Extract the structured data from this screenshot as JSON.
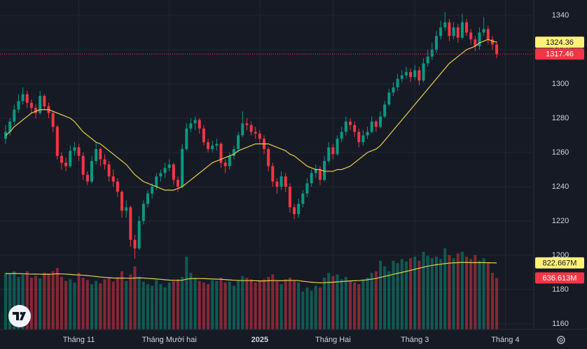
{
  "chart_data": {
    "type": "candlestick",
    "up_color": "#089981",
    "down_color": "#f23645",
    "ma_color": "#e6cf4a",
    "grid": true,
    "ylim": [
      1156.7,
      1349
    ],
    "yticks": [
      1160,
      1180,
      1200,
      1220,
      1240,
      1260,
      1280,
      1300,
      1320,
      1340
    ],
    "volume_ylim": [
      0,
      4074
    ],
    "categories": [
      null,
      null,
      null,
      null,
      null,
      null,
      null,
      null,
      null,
      null,
      null,
      null,
      null,
      null,
      null,
      null,
      null,
      "Tháng 11",
      null,
      null,
      null,
      null,
      null,
      null,
      null,
      null,
      null,
      null,
      null,
      null,
      null,
      null,
      null,
      null,
      null,
      null,
      null,
      null,
      "Tháng Mười hai",
      null,
      null,
      null,
      null,
      null,
      null,
      null,
      null,
      null,
      null,
      null,
      null,
      null,
      null,
      null,
      null,
      null,
      null,
      null,
      null,
      "2025",
      null,
      null,
      null,
      null,
      null,
      null,
      null,
      null,
      null,
      null,
      null,
      null,
      null,
      null,
      null,
      null,
      "Tháng Hai",
      null,
      null,
      null,
      null,
      null,
      null,
      null,
      null,
      null,
      null,
      null,
      null,
      null,
      null,
      null,
      null,
      null,
      null,
      "Tháng 3",
      null,
      null,
      null,
      null,
      null,
      null,
      null,
      null,
      null,
      null,
      null,
      null,
      null,
      null,
      null,
      null,
      null,
      null,
      null,
      null,
      "Tháng 4"
    ],
    "ohlc": [
      [
        1268,
        1276,
        1265,
        1272
      ],
      [
        1272,
        1280,
        1270,
        1278
      ],
      [
        1278,
        1288,
        1276,
        1285
      ],
      [
        1285,
        1294,
        1283,
        1290
      ],
      [
        1290,
        1298,
        1288,
        1294
      ],
      [
        1294,
        1296,
        1286,
        1289
      ],
      [
        1289,
        1291,
        1283,
        1286
      ],
      [
        1286,
        1288,
        1280,
        1283
      ],
      [
        1283,
        1296,
        1282,
        1293
      ],
      [
        1293,
        1294,
        1285,
        1287
      ],
      [
        1287,
        1289,
        1280,
        1283
      ],
      [
        1283,
        1284,
        1272,
        1275
      ],
      [
        1275,
        1276,
        1256,
        1258
      ],
      [
        1258,
        1260,
        1250,
        1254
      ],
      [
        1254,
        1257,
        1249,
        1252
      ],
      [
        1252,
        1264,
        1251,
        1261
      ],
      [
        1261,
        1266,
        1258,
        1263
      ],
      [
        1263,
        1265,
        1255,
        1258
      ],
      [
        1258,
        1260,
        1244,
        1247
      ],
      [
        1247,
        1249,
        1241,
        1243
      ],
      [
        1243,
        1258,
        1242,
        1255
      ],
      [
        1255,
        1266,
        1253,
        1262
      ],
      [
        1262,
        1263,
        1252,
        1256
      ],
      [
        1256,
        1259,
        1250,
        1253
      ],
      [
        1253,
        1255,
        1243,
        1246
      ],
      [
        1246,
        1250,
        1240,
        1243
      ],
      [
        1243,
        1245,
        1234,
        1237
      ],
      [
        1237,
        1238,
        1222,
        1226
      ],
      [
        1226,
        1232,
        1222,
        1228
      ],
      [
        1228,
        1229,
        1205,
        1209
      ],
      [
        1209,
        1212,
        1198,
        1204
      ],
      [
        1204,
        1223,
        1203,
        1220
      ],
      [
        1220,
        1232,
        1218,
        1230
      ],
      [
        1230,
        1238,
        1228,
        1236
      ],
      [
        1236,
        1242,
        1233,
        1240
      ],
      [
        1240,
        1248,
        1238,
        1246
      ],
      [
        1246,
        1250,
        1243,
        1248
      ],
      [
        1248,
        1254,
        1245,
        1251
      ],
      [
        1251,
        1256,
        1249,
        1253
      ],
      [
        1253,
        1254,
        1241,
        1244
      ],
      [
        1244,
        1246,
        1237,
        1240
      ],
      [
        1240,
        1265,
        1239,
        1262
      ],
      [
        1262,
        1277,
        1261,
        1274
      ],
      [
        1274,
        1280,
        1272,
        1277
      ],
      [
        1277,
        1281,
        1273,
        1279
      ],
      [
        1279,
        1280,
        1271,
        1274
      ],
      [
        1274,
        1276,
        1264,
        1266
      ],
      [
        1266,
        1268,
        1260,
        1262
      ],
      [
        1262,
        1267,
        1260,
        1264
      ],
      [
        1264,
        1268,
        1261,
        1265
      ],
      [
        1265,
        1266,
        1251,
        1254
      ],
      [
        1254,
        1256,
        1248,
        1252
      ],
      [
        1252,
        1260,
        1250,
        1258
      ],
      [
        1258,
        1264,
        1256,
        1262
      ],
      [
        1262,
        1272,
        1260,
        1270
      ],
      [
        1270,
        1284,
        1269,
        1277
      ],
      [
        1277,
        1280,
        1273,
        1276
      ],
      [
        1276,
        1278,
        1270,
        1272
      ],
      [
        1272,
        1275,
        1268,
        1271
      ],
      [
        1271,
        1273,
        1265,
        1268
      ],
      [
        1268,
        1270,
        1259,
        1262
      ],
      [
        1262,
        1263,
        1249,
        1252
      ],
      [
        1252,
        1254,
        1240,
        1243
      ],
      [
        1243,
        1245,
        1236,
        1240
      ],
      [
        1240,
        1249,
        1238,
        1246
      ],
      [
        1246,
        1248,
        1237,
        1240
      ],
      [
        1240,
        1242,
        1225,
        1228
      ],
      [
        1228,
        1230,
        1221,
        1224
      ],
      [
        1224,
        1233,
        1222,
        1230
      ],
      [
        1230,
        1238,
        1228,
        1236
      ],
      [
        1236,
        1245,
        1234,
        1242
      ],
      [
        1242,
        1250,
        1240,
        1248
      ],
      [
        1248,
        1253,
        1245,
        1250
      ],
      [
        1250,
        1252,
        1241,
        1244
      ],
      [
        1244,
        1258,
        1243,
        1255
      ],
      [
        1255,
        1266,
        1254,
        1263
      ],
      [
        1263,
        1265,
        1256,
        1259
      ],
      [
        1259,
        1270,
        1258,
        1268
      ],
      [
        1268,
        1275,
        1266,
        1272
      ],
      [
        1272,
        1281,
        1270,
        1278
      ],
      [
        1278,
        1280,
        1273,
        1276
      ],
      [
        1276,
        1278,
        1269,
        1272
      ],
      [
        1272,
        1274,
        1263,
        1266
      ],
      [
        1266,
        1273,
        1264,
        1270
      ],
      [
        1270,
        1275,
        1268,
        1272
      ],
      [
        1272,
        1281,
        1271,
        1278
      ],
      [
        1278,
        1279,
        1272,
        1275
      ],
      [
        1275,
        1284,
        1274,
        1281
      ],
      [
        1281,
        1290,
        1280,
        1288
      ],
      [
        1288,
        1297,
        1287,
        1295
      ],
      [
        1295,
        1301,
        1293,
        1298
      ],
      [
        1298,
        1306,
        1296,
        1303
      ],
      [
        1303,
        1308,
        1301,
        1305
      ],
      [
        1305,
        1310,
        1303,
        1307
      ],
      [
        1307,
        1309,
        1301,
        1304
      ],
      [
        1304,
        1311,
        1302,
        1308
      ],
      [
        1308,
        1310,
        1299,
        1302
      ],
      [
        1302,
        1315,
        1301,
        1312
      ],
      [
        1312,
        1320,
        1310,
        1316
      ],
      [
        1316,
        1324,
        1314,
        1320
      ],
      [
        1320,
        1331,
        1318,
        1328
      ],
      [
        1328,
        1337,
        1326,
        1333
      ],
      [
        1333,
        1342,
        1331,
        1336
      ],
      [
        1336,
        1338,
        1325,
        1328
      ],
      [
        1328,
        1336,
        1326,
        1333
      ],
      [
        1333,
        1335,
        1324,
        1327
      ],
      [
        1327,
        1341,
        1326,
        1336
      ],
      [
        1336,
        1338,
        1328,
        1330
      ],
      [
        1330,
        1332,
        1323,
        1326
      ],
      [
        1326,
        1328,
        1319,
        1322
      ],
      [
        1322,
        1333,
        1320,
        1330
      ],
      [
        1330,
        1339,
        1328,
        1332
      ],
      [
        1332,
        1334,
        1323,
        1326
      ],
      [
        1326,
        1328,
        1320,
        1323
      ],
      [
        1323,
        1325,
        1315,
        1317.46
      ],
      null,
      null
    ],
    "ma": [
      1270,
      1272,
      1275,
      1277,
      1279,
      1281,
      1283,
      1284,
      1285,
      1285,
      1285,
      1284,
      1283,
      1282,
      1281,
      1280,
      1278,
      1275,
      1272,
      1270,
      1268,
      1266,
      1265,
      1263,
      1261,
      1259,
      1257,
      1255,
      1253,
      1250,
      1247,
      1245,
      1243,
      1242,
      1241,
      1240,
      1239,
      1238,
      1238,
      1238,
      1239,
      1240,
      1242,
      1244,
      1246,
      1248,
      1250,
      1252,
      1254,
      1255,
      1256,
      1257,
      1258,
      1259,
      1261,
      1262,
      1263,
      1264,
      1265,
      1265,
      1265,
      1265,
      1264,
      1263,
      1262,
      1261,
      1259,
      1258,
      1256,
      1254,
      1252,
      1251,
      1250,
      1250,
      1249,
      1249,
      1249,
      1250,
      1250,
      1251,
      1252,
      1254,
      1256,
      1258,
      1260,
      1261,
      1262,
      1264,
      1267,
      1270,
      1273,
      1276,
      1279,
      1282,
      1285,
      1288,
      1291,
      1294,
      1297,
      1300,
      1303,
      1306,
      1309,
      1312,
      1314,
      1316,
      1318,
      1320,
      1321,
      1322,
      1324,
      1325,
      1326,
      1325,
      1324.36,
      null,
      null
    ],
    "volume": [
      700,
      690,
      720,
      650,
      680,
      720,
      640,
      660,
      630,
      700,
      690,
      720,
      760,
      650,
      600,
      620,
      580,
      700,
      640,
      610,
      560,
      600,
      570,
      620,
      640,
      590,
      650,
      720,
      600,
      680,
      780,
      650,
      590,
      560,
      540,
      610,
      560,
      520,
      580,
      600,
      620,
      650,
      900,
      700,
      640,
      600,
      580,
      560,
      610,
      600,
      640,
      580,
      590,
      540,
      610,
      660,
      640,
      620,
      580,
      600,
      620,
      650,
      680,
      600,
      560,
      620,
      640,
      610,
      580,
      470,
      520,
      480,
      540,
      520,
      640,
      700,
      660,
      680,
      620,
      650,
      600,
      580,
      560,
      620,
      640,
      700,
      720,
      850,
      780,
      720,
      850,
      820,
      870,
      840,
      880,
      900,
      850,
      960,
      910,
      880,
      900,
      870,
      1003,
      920,
      880,
      940,
      960,
      900,
      870,
      920,
      850,
      880,
      820,
      700,
      636.613,
      null,
      null
    ],
    "volume_ma": [
      690,
      690,
      692,
      690,
      688,
      686,
      684,
      685,
      683,
      682,
      682,
      684,
      688,
      686,
      684,
      680,
      676,
      674,
      670,
      666,
      660,
      654,
      648,
      644,
      640,
      636,
      634,
      636,
      634,
      632,
      636,
      638,
      636,
      632,
      628,
      624,
      620,
      614,
      610,
      608,
      606,
      608,
      622,
      628,
      630,
      630,
      628,
      626,
      624,
      622,
      620,
      616,
      612,
      608,
      606,
      604,
      604,
      604,
      602,
      600,
      600,
      602,
      604,
      604,
      602,
      604,
      606,
      606,
      604,
      596,
      590,
      584,
      580,
      576,
      578,
      582,
      584,
      588,
      592,
      596,
      600,
      602,
      604,
      608,
      614,
      622,
      630,
      644,
      656,
      668,
      682,
      694,
      706,
      718,
      730,
      744,
      756,
      770,
      782,
      792,
      800,
      806,
      814,
      820,
      824,
      826,
      828,
      828,
      826,
      826,
      826,
      826,
      825,
      824,
      822.667,
      null,
      null
    ],
    "volume_label": "636.613M",
    "volume_ma_label": "822.667M"
  }
}
